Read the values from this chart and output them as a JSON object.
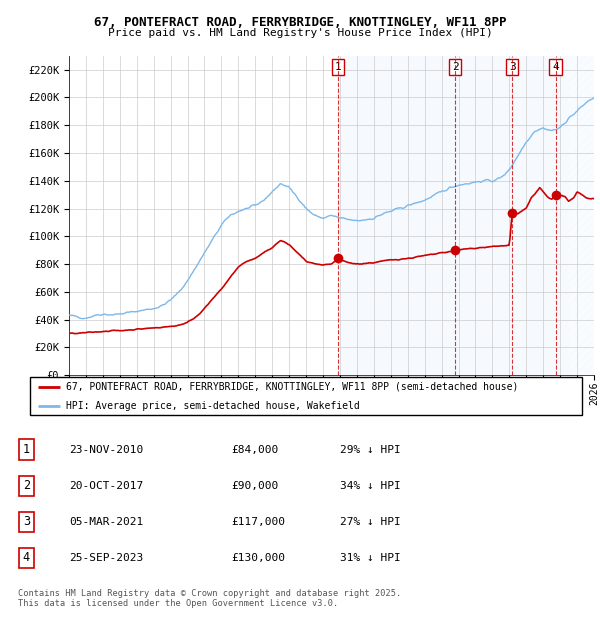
{
  "title1": "67, PONTEFRACT ROAD, FERRYBRIDGE, KNOTTINGLEY, WF11 8PP",
  "title2": "Price paid vs. HM Land Registry's House Price Index (HPI)",
  "ylim": [
    0,
    230000
  ],
  "yticks": [
    0,
    20000,
    40000,
    60000,
    80000,
    100000,
    120000,
    140000,
    160000,
    180000,
    200000,
    220000
  ],
  "ytick_labels": [
    "£0",
    "£20K",
    "£40K",
    "£60K",
    "£80K",
    "£100K",
    "£120K",
    "£140K",
    "£160K",
    "£180K",
    "£200K",
    "£220K"
  ],
  "property_color": "#cc0000",
  "hpi_color": "#7eb8e8",
  "sale_color": "#cc0000",
  "vline_color": "#cc0000",
  "shade_color": "#ddeeff",
  "hatch_color": "#c8d8e8",
  "transaction_dates": [
    2010.9,
    2017.8,
    2021.17,
    2023.73
  ],
  "transaction_prices": [
    84000,
    90000,
    117000,
    130000
  ],
  "transaction_labels": [
    "1",
    "2",
    "3",
    "4"
  ],
  "legend_property": "67, PONTEFRACT ROAD, FERRYBRIDGE, KNOTTINGLEY, WF11 8PP (semi-detached house)",
  "legend_hpi": "HPI: Average price, semi-detached house, Wakefield",
  "table_rows": [
    [
      "1",
      "23-NOV-2010",
      "£84,000",
      "29% ↓ HPI"
    ],
    [
      "2",
      "20-OCT-2017",
      "£90,000",
      "34% ↓ HPI"
    ],
    [
      "3",
      "05-MAR-2021",
      "£117,000",
      "27% ↓ HPI"
    ],
    [
      "4",
      "25-SEP-2023",
      "£130,000",
      "31% ↓ HPI"
    ]
  ],
  "footnote": "Contains HM Land Registry data © Crown copyright and database right 2025.\nThis data is licensed under the Open Government Licence v3.0.",
  "xmin": 1995,
  "xmax": 2026,
  "hatch_start": 2024.5,
  "hpi_anchors": [
    [
      1995.0,
      43000
    ],
    [
      1995.5,
      42000
    ],
    [
      1996.0,
      41000
    ],
    [
      1996.5,
      43000
    ],
    [
      1997.0,
      44000
    ],
    [
      1997.5,
      43500
    ],
    [
      1998.0,
      44000
    ],
    [
      1998.5,
      45000
    ],
    [
      1999.0,
      46000
    ],
    [
      1999.5,
      47000
    ],
    [
      2000.0,
      48000
    ],
    [
      2000.5,
      50000
    ],
    [
      2001.0,
      54000
    ],
    [
      2001.5,
      60000
    ],
    [
      2002.0,
      68000
    ],
    [
      2002.5,
      78000
    ],
    [
      2003.0,
      88000
    ],
    [
      2003.5,
      98000
    ],
    [
      2004.0,
      108000
    ],
    [
      2004.5,
      115000
    ],
    [
      2005.0,
      118000
    ],
    [
      2005.5,
      120000
    ],
    [
      2006.0,
      122000
    ],
    [
      2006.5,
      126000
    ],
    [
      2007.0,
      132000
    ],
    [
      2007.5,
      138000
    ],
    [
      2008.0,
      135000
    ],
    [
      2008.5,
      128000
    ],
    [
      2009.0,
      120000
    ],
    [
      2009.5,
      115000
    ],
    [
      2010.0,
      113000
    ],
    [
      2010.5,
      115000
    ],
    [
      2011.0,
      113000
    ],
    [
      2011.5,
      112000
    ],
    [
      2012.0,
      111000
    ],
    [
      2012.5,
      112000
    ],
    [
      2013.0,
      113000
    ],
    [
      2013.5,
      116000
    ],
    [
      2014.0,
      118000
    ],
    [
      2014.5,
      120000
    ],
    [
      2015.0,
      122000
    ],
    [
      2015.5,
      124000
    ],
    [
      2016.0,
      126000
    ],
    [
      2016.5,
      129000
    ],
    [
      2017.0,
      132000
    ],
    [
      2017.5,
      135000
    ],
    [
      2018.0,
      137000
    ],
    [
      2018.5,
      138000
    ],
    [
      2019.0,
      139000
    ],
    [
      2019.5,
      140000
    ],
    [
      2020.0,
      140000
    ],
    [
      2020.5,
      142000
    ],
    [
      2021.0,
      148000
    ],
    [
      2021.5,
      158000
    ],
    [
      2022.0,
      168000
    ],
    [
      2022.5,
      176000
    ],
    [
      2023.0,
      178000
    ],
    [
      2023.5,
      176000
    ],
    [
      2024.0,
      178000
    ],
    [
      2024.5,
      185000
    ],
    [
      2025.0,
      190000
    ],
    [
      2025.5,
      196000
    ],
    [
      2026.0,
      200000
    ]
  ],
  "prop_anchors": [
    [
      1995.0,
      30000
    ],
    [
      1995.5,
      30000
    ],
    [
      1996.0,
      30500
    ],
    [
      1996.5,
      31000
    ],
    [
      1997.0,
      31500
    ],
    [
      1997.5,
      32000
    ],
    [
      1998.0,
      32000
    ],
    [
      1998.5,
      32500
    ],
    [
      1999.0,
      33000
    ],
    [
      1999.5,
      33500
    ],
    [
      2000.0,
      34000
    ],
    [
      2000.5,
      34500
    ],
    [
      2001.0,
      35000
    ],
    [
      2001.5,
      36000
    ],
    [
      2002.0,
      38000
    ],
    [
      2002.5,
      42000
    ],
    [
      2003.0,
      48000
    ],
    [
      2003.5,
      55000
    ],
    [
      2004.0,
      62000
    ],
    [
      2004.5,
      70000
    ],
    [
      2005.0,
      78000
    ],
    [
      2005.5,
      82000
    ],
    [
      2006.0,
      84000
    ],
    [
      2006.5,
      88000
    ],
    [
      2007.0,
      92000
    ],
    [
      2007.5,
      97000
    ],
    [
      2008.0,
      94000
    ],
    [
      2008.5,
      88000
    ],
    [
      2009.0,
      82000
    ],
    [
      2009.5,
      80000
    ],
    [
      2010.0,
      79000
    ],
    [
      2010.5,
      80000
    ],
    [
      2010.9,
      84000
    ],
    [
      2011.0,
      83000
    ],
    [
      2011.5,
      81000
    ],
    [
      2012.0,
      80000
    ],
    [
      2012.5,
      80500
    ],
    [
      2013.0,
      81000
    ],
    [
      2013.5,
      82000
    ],
    [
      2014.0,
      83000
    ],
    [
      2014.5,
      83500
    ],
    [
      2015.0,
      84000
    ],
    [
      2015.5,
      85000
    ],
    [
      2016.0,
      86000
    ],
    [
      2016.5,
      87000
    ],
    [
      2017.0,
      88000
    ],
    [
      2017.5,
      89000
    ],
    [
      2017.8,
      90000
    ],
    [
      2018.0,
      90000
    ],
    [
      2018.5,
      91000
    ],
    [
      2019.0,
      91500
    ],
    [
      2019.5,
      92000
    ],
    [
      2020.0,
      92500
    ],
    [
      2020.5,
      93000
    ],
    [
      2021.0,
      93500
    ],
    [
      2021.17,
      117000
    ],
    [
      2021.5,
      116000
    ],
    [
      2022.0,
      120000
    ],
    [
      2022.3,
      128000
    ],
    [
      2022.5,
      130000
    ],
    [
      2022.8,
      135000
    ],
    [
      2023.0,
      132000
    ],
    [
      2023.3,
      128000
    ],
    [
      2023.5,
      127000
    ],
    [
      2023.73,
      130000
    ],
    [
      2024.0,
      130000
    ],
    [
      2024.3,
      128000
    ],
    [
      2024.5,
      125000
    ],
    [
      2024.8,
      128000
    ],
    [
      2025.0,
      132000
    ],
    [
      2025.3,
      130000
    ],
    [
      2025.5,
      128000
    ],
    [
      2025.8,
      127000
    ],
    [
      2026.0,
      127000
    ]
  ]
}
